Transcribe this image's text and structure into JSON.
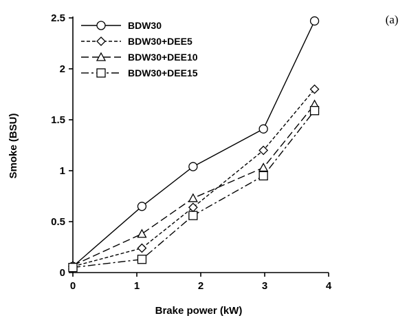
{
  "chart_data": {
    "type": "line",
    "panel_label": "(a)",
    "xlabel": "Brake power (kW)",
    "ylabel": "Smoke (BSU)",
    "xlim": [
      0,
      4
    ],
    "ylim": [
      0,
      2.5
    ],
    "x_ticks": [
      "0",
      "1",
      "2",
      "3",
      "4"
    ],
    "y_ticks": [
      "0",
      "0.5",
      "1",
      "1.5",
      "2",
      "2.5"
    ],
    "grid": false,
    "legend_position": "top-left",
    "series": [
      {
        "name": "BDW30",
        "marker": "circle",
        "dash": "solid",
        "x": [
          0,
          1.08,
          1.88,
          2.98,
          3.78
        ],
        "y": [
          0.06,
          0.65,
          1.04,
          1.41,
          2.47
        ]
      },
      {
        "name": "BDW30+DEE5",
        "marker": "diamond",
        "dash": "short-dash",
        "x": [
          0,
          1.08,
          1.88,
          2.98,
          3.78
        ],
        "y": [
          0.06,
          0.24,
          0.64,
          1.2,
          1.8
        ]
      },
      {
        "name": "BDW30+DEE10",
        "marker": "triangle",
        "dash": "long-dash",
        "x": [
          0,
          1.08,
          1.88,
          2.98,
          3.78
        ],
        "y": [
          0.07,
          0.38,
          0.73,
          1.03,
          1.65
        ]
      },
      {
        "name": "BDW30+DEE15",
        "marker": "square",
        "dash": "dash-dot",
        "x": [
          0,
          1.08,
          1.88,
          2.98,
          3.78
        ],
        "y": [
          0.05,
          0.13,
          0.56,
          0.95,
          1.59
        ]
      }
    ]
  }
}
